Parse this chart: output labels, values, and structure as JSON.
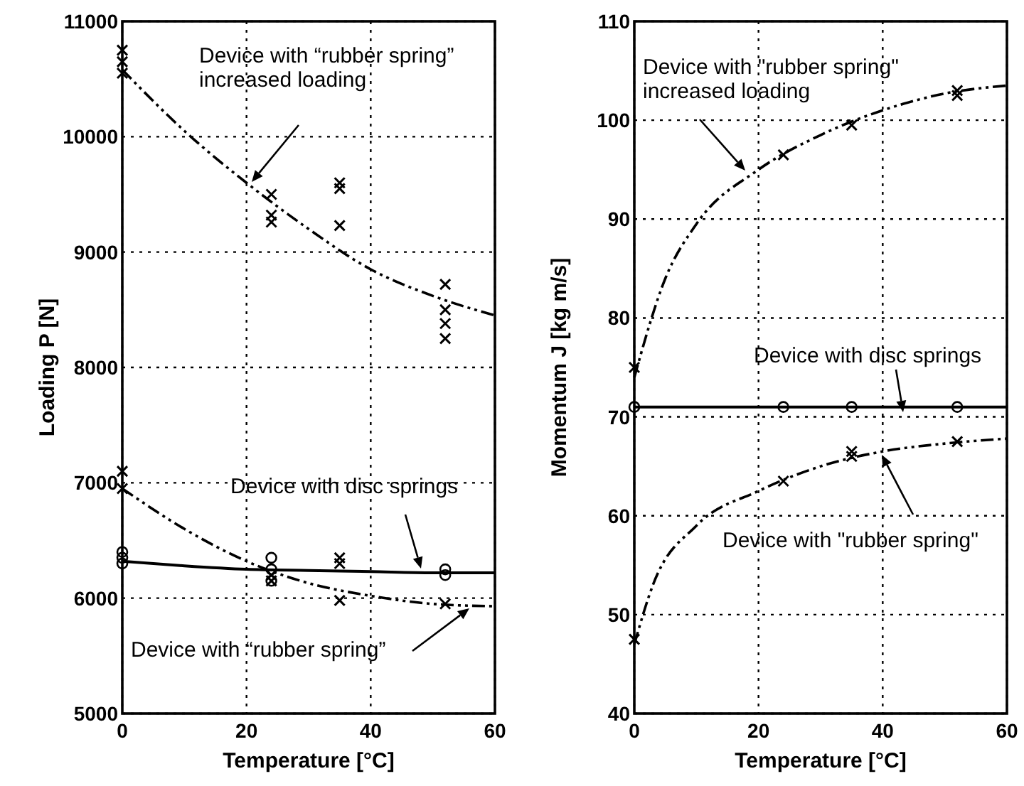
{
  "chart_data": [
    {
      "type": "scatter",
      "xlabel": "Temperature [°C]",
      "ylabel": "Loading P [N]",
      "xlim": [
        0,
        60
      ],
      "xticks": [
        0,
        20,
        40,
        60
      ],
      "ylim": [
        5000,
        11000
      ],
      "yticks": [
        5000,
        6000,
        7000,
        8000,
        9000,
        10000,
        11000
      ],
      "grid": true,
      "series": [
        {
          "color": "#000000",
          "marker": "cross",
          "x": [
            0,
            0,
            0,
            24,
            24,
            24,
            35,
            35,
            35,
            52,
            52,
            52,
            52
          ],
          "values": [
            10750,
            10650,
            10550,
            9500,
            9320,
            9260,
            9600,
            9550,
            9230,
            8720,
            8500,
            8380,
            8250
          ]
        },
        {
          "type": "line",
          "color": "#000000",
          "marker": "none",
          "line_style": "dashed",
          "x": [
            0,
            10,
            20,
            30,
            40,
            50,
            60
          ],
          "values": [
            10580,
            10050,
            9600,
            9200,
            8850,
            8620,
            8450
          ]
        },
        {
          "color": "#000000",
          "marker": "circle",
          "x": [
            0,
            0,
            0,
            24,
            24,
            24,
            52,
            52
          ],
          "values": [
            6400,
            6350,
            6300,
            6350,
            6250,
            6150,
            6250,
            6200
          ]
        },
        {
          "type": "line",
          "color": "#000000",
          "marker": "none",
          "line_style": "solid",
          "x": [
            0,
            10,
            20,
            30,
            40,
            50,
            60
          ],
          "values": [
            6320,
            6280,
            6250,
            6240,
            6230,
            6220,
            6220
          ]
        },
        {
          "color": "#000000",
          "marker": "cross",
          "x": [
            0,
            0,
            24,
            24,
            35,
            35,
            35,
            52
          ],
          "values": [
            7100,
            6950,
            6200,
            6150,
            6350,
            6300,
            5980,
            5950
          ]
        },
        {
          "type": "line",
          "color": "#000000",
          "marker": "none",
          "line_style": "dashed",
          "x": [
            0,
            10,
            20,
            30,
            40,
            50,
            60
          ],
          "values": [
            6950,
            6600,
            6320,
            6130,
            6020,
            5950,
            5930
          ]
        }
      ],
      "annotations": [
        "Device with “rubber spring”\nincreased loading",
        "Device with disc springs",
        "Device with “rubber spring”"
      ]
    },
    {
      "type": "scatter",
      "xlabel": "Temperature [°C]",
      "ylabel": "Momentum J [kg m/s]",
      "xlim": [
        0,
        60
      ],
      "xticks": [
        0,
        20,
        40,
        60
      ],
      "ylim": [
        40,
        110
      ],
      "yticks": [
        40,
        50,
        60,
        70,
        80,
        90,
        100,
        110
      ],
      "grid": true,
      "series": [
        {
          "color": "#000000",
          "marker": "cross",
          "x": [
            0,
            24,
            35,
            52,
            52
          ],
          "values": [
            75,
            96.5,
            99.5,
            103,
            102.5
          ]
        },
        {
          "type": "line",
          "color": "#000000",
          "marker": "none",
          "line_style": "dashed",
          "x": [
            0,
            5,
            10,
            20,
            30,
            40,
            50,
            60
          ],
          "values": [
            74,
            84,
            89.5,
            95,
            98.5,
            101,
            102.7,
            103.5
          ]
        },
        {
          "color": "#000000",
          "marker": "circle",
          "x": [
            0,
            24,
            35,
            52
          ],
          "values": [
            71,
            71,
            71,
            71
          ]
        },
        {
          "type": "line",
          "color": "#000000",
          "marker": "none",
          "line_style": "solid",
          "x": [
            0,
            60
          ],
          "values": [
            71,
            71
          ]
        },
        {
          "color": "#000000",
          "marker": "cross",
          "x": [
            0,
            24,
            35,
            35,
            52
          ],
          "values": [
            47.5,
            63.5,
            66.5,
            66,
            67.5
          ]
        },
        {
          "type": "line",
          "color": "#000000",
          "marker": "none",
          "line_style": "dashed",
          "x": [
            0,
            3,
            10,
            20,
            30,
            40,
            50,
            60
          ],
          "values": [
            47,
            53,
            59,
            62.5,
            65,
            66.5,
            67.3,
            67.8
          ]
        }
      ],
      "annotations": [
        "Device with \"rubber spring\"\nincreased loading",
        "Device with disc springs",
        "Device with \"rubber spring\""
      ]
    }
  ]
}
